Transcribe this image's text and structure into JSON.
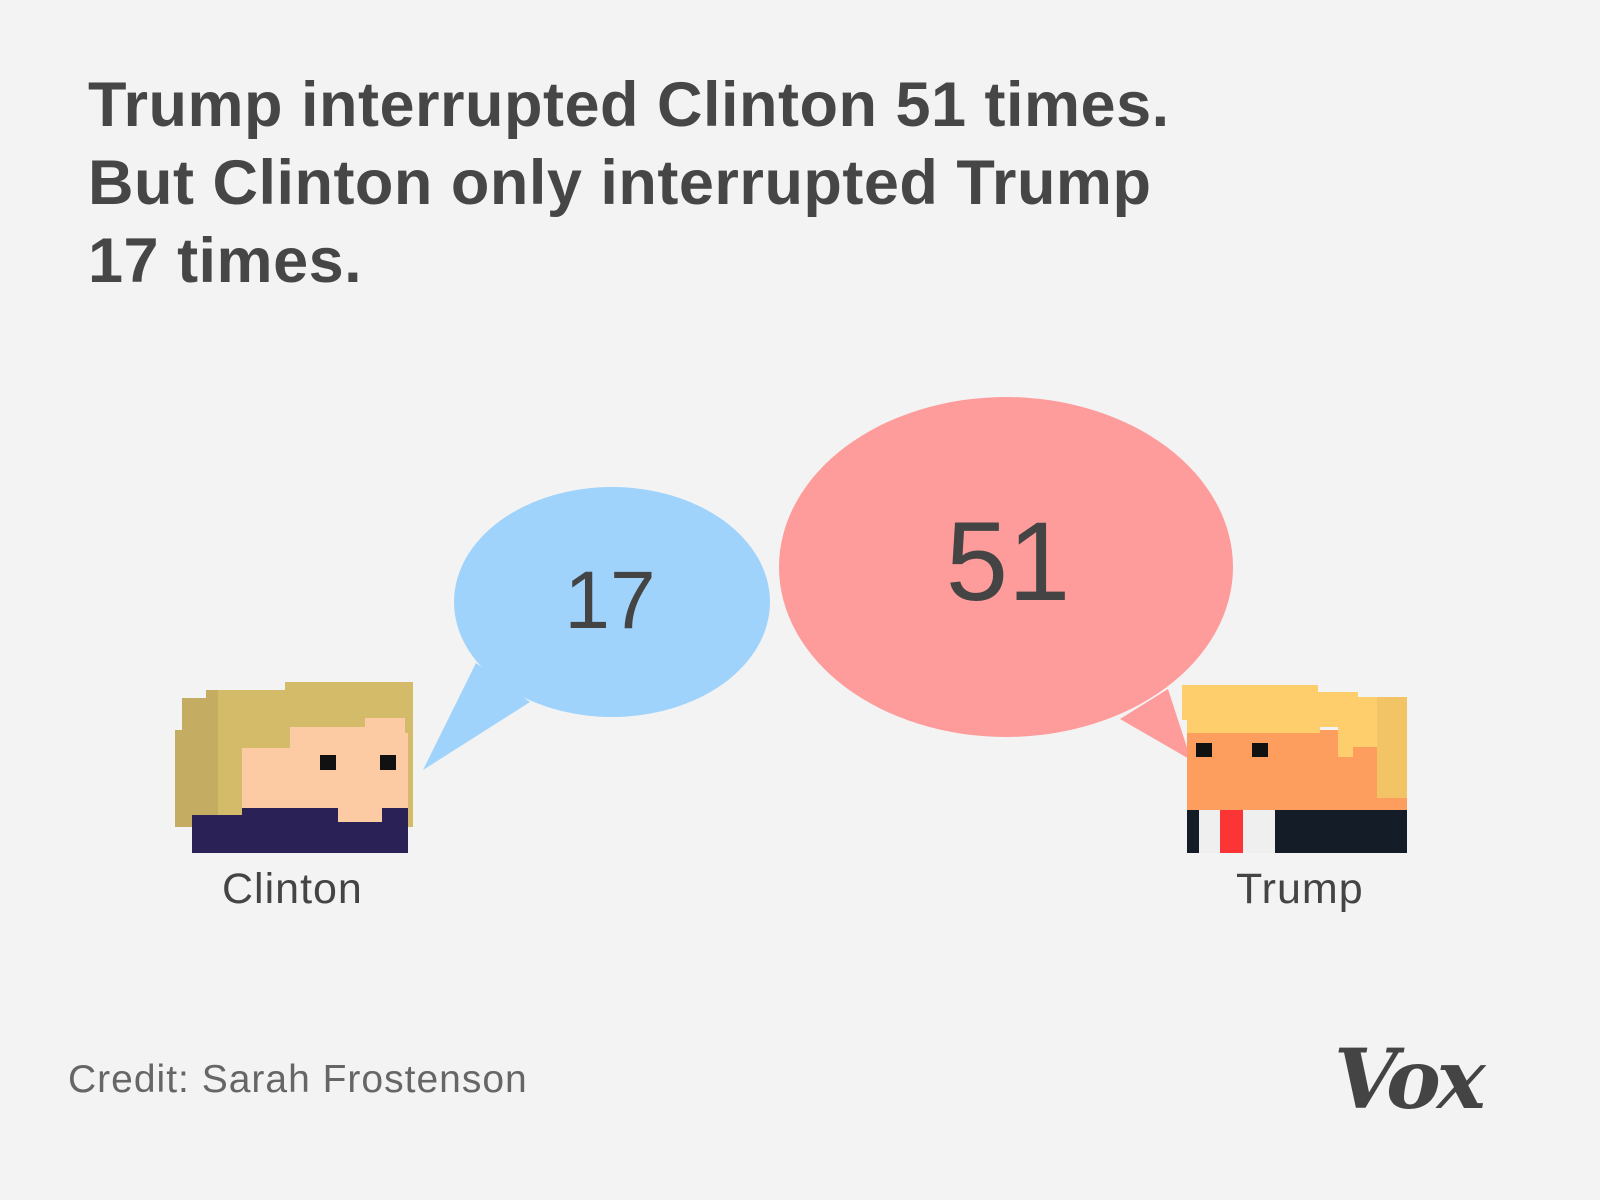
{
  "title_lines": [
    "Trump interrupted Clinton 51 times.",
    "But Clinton only interrupted Trump",
    "17 times."
  ],
  "clinton": {
    "label": "Clinton",
    "interruptions": "17",
    "bubble_color": "#9fd3fc"
  },
  "trump": {
    "label": "Trump",
    "interruptions": "51",
    "bubble_color": "#fe9b9b"
  },
  "credit": "Credit: Sarah Frostenson",
  "logo": "Vox"
}
